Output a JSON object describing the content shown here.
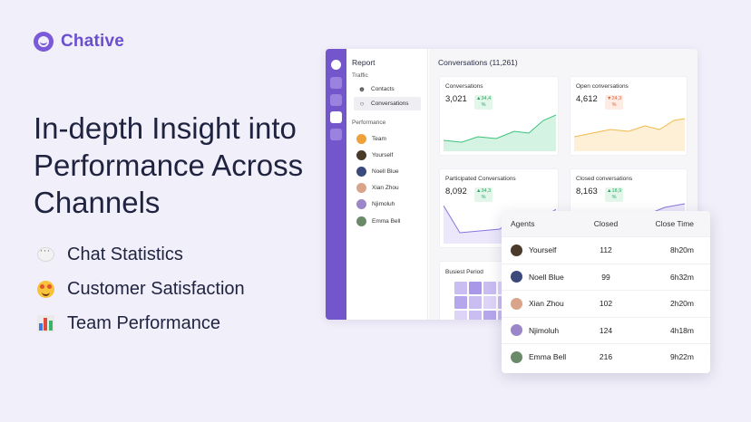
{
  "brand": {
    "name": "Chative"
  },
  "hero": {
    "headline": "In-depth Insight into Performance Across Channels",
    "features": [
      {
        "icon": "speech-bubble-icon",
        "label": "Chat Statistics"
      },
      {
        "icon": "starstruck-face-icon",
        "label": "Customer Satisfaction"
      },
      {
        "icon": "bar-chart-icon",
        "label": "Team Performance"
      }
    ]
  },
  "app": {
    "sidebar": {
      "title": "Report",
      "traffic_label": "Traffic",
      "traffic_items": [
        {
          "icon": "users-icon",
          "label": "Contacts"
        },
        {
          "icon": "chat-icon",
          "label": "Conversations"
        }
      ],
      "performance_label": "Performance",
      "performance_items": [
        {
          "label": "Team"
        },
        {
          "label": "Yourself"
        },
        {
          "label": "Noell Blue"
        },
        {
          "label": "Xian Zhou"
        },
        {
          "label": "Njimoluh"
        },
        {
          "label": "Emma Bell"
        }
      ]
    },
    "main": {
      "title": "Conversations (11,261)",
      "cards": [
        {
          "title": "Conversations",
          "value": "3,021",
          "delta": "34,4",
          "delta_unit": "%",
          "trend": "up",
          "color": "#3cc27a"
        },
        {
          "title": "Open conversations",
          "value": "4,612",
          "delta": "24,3",
          "delta_unit": "%",
          "trend": "down",
          "color": "#f2b94b"
        },
        {
          "title": "Participated Conversations",
          "value": "8,092",
          "delta": "34,3",
          "delta_unit": "%",
          "trend": "up",
          "color": "#8a74de"
        },
        {
          "title": "Closed conversations",
          "value": "8,163",
          "delta": "18,9",
          "delta_unit": "%",
          "trend": "up",
          "color": "#8a74de"
        }
      ],
      "busiest_title": "Busiest Period"
    }
  },
  "agents_table": {
    "headers": {
      "agents": "Agents",
      "closed": "Closed",
      "close_time": "Close Time"
    },
    "rows": [
      {
        "name": "Yourself",
        "closed": "112",
        "close_time": "8h20m"
      },
      {
        "name": "Noell Blue",
        "closed": "99",
        "close_time": "6h32m"
      },
      {
        "name": "Xian Zhou",
        "closed": "102",
        "close_time": "2h20m"
      },
      {
        "name": "Njimoluh",
        "closed": "124",
        "close_time": "4h18m"
      },
      {
        "name": "Emma Bell",
        "closed": "216",
        "close_time": "9h22m"
      }
    ]
  },
  "colors": {
    "accent": "#7456cc",
    "brand": "#6a4fcf",
    "background": "#f1eff9"
  }
}
